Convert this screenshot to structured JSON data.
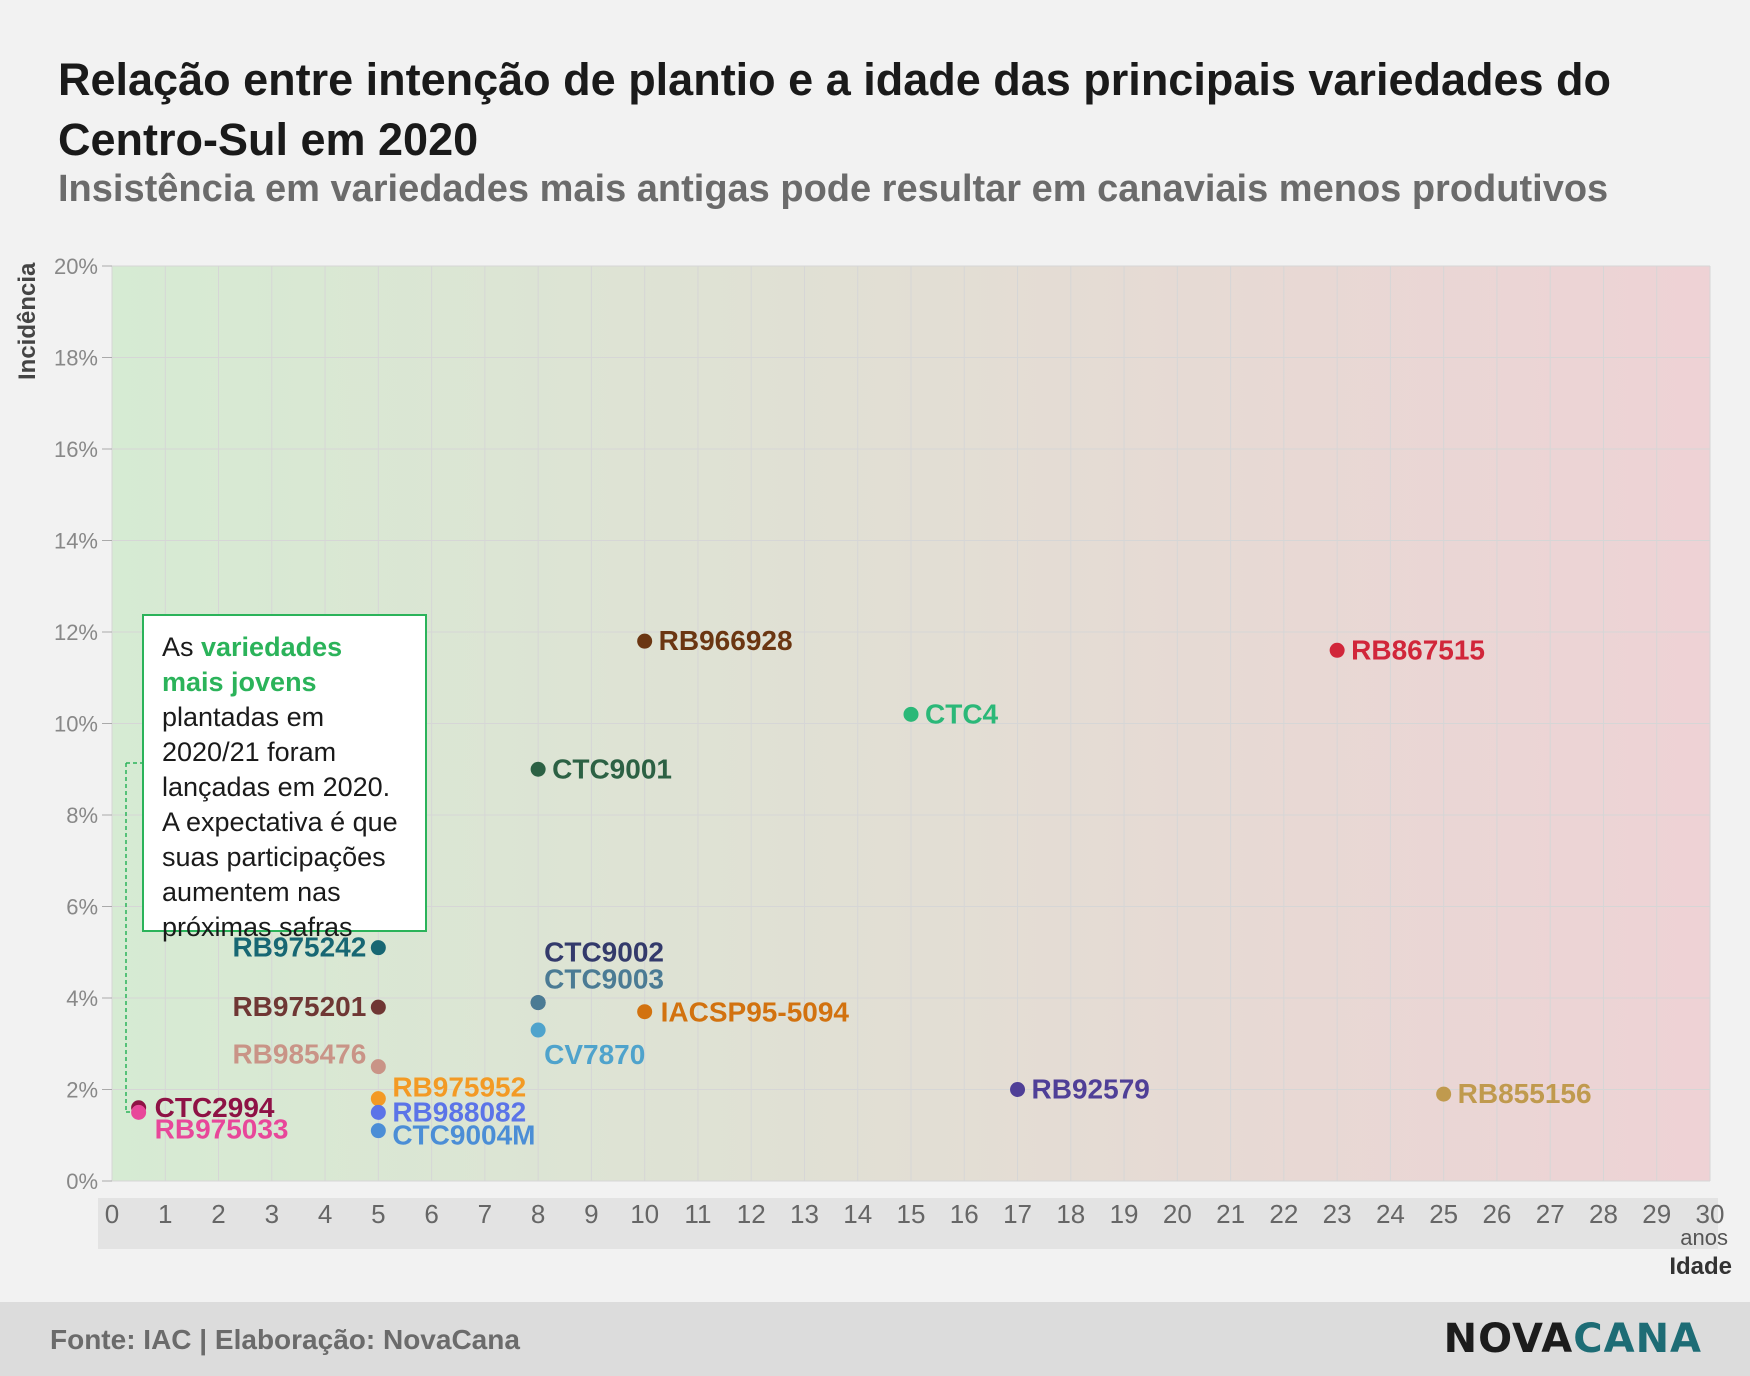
{
  "title": "Relação entre intenção de plantio e a idade das principais variedades do Centro-Sul em 2020",
  "subtitle": "Insistência em variedades mais antigas pode resultar em canaviais menos produtivos",
  "annotation": {
    "pre": "As ",
    "highlight": "variedades mais jovens",
    "post": " plantadas em 2020/21 foram lançadas em 2020. A expectativa é que suas participações aumentem nas próximas safras"
  },
  "source": "Fonte: IAC | Elaboração: NovaCana",
  "logo": {
    "part1": "NOVA",
    "part2": "CANA"
  },
  "chart_data": {
    "type": "scatter",
    "ylabel": "Incidência",
    "xlabel": "Idade",
    "xunit": "anos",
    "xlim": [
      0,
      30
    ],
    "ylim": [
      0,
      20
    ],
    "xticks": [
      "0",
      "1",
      "2",
      "3",
      "4",
      "5",
      "6",
      "7",
      "8",
      "9",
      "10",
      "11",
      "12",
      "13",
      "14",
      "15",
      "16",
      "17",
      "18",
      "19",
      "20",
      "21",
      "22",
      "23",
      "24",
      "25",
      "26",
      "27",
      "28",
      "29",
      "30"
    ],
    "yticks": [
      "0%",
      "2%",
      "4%",
      "6%",
      "8%",
      "10%",
      "12%",
      "14%",
      "16%",
      "18%",
      "20%"
    ],
    "grid": true,
    "background_gradient": [
      "#d6ebd3",
      "#eed2d5"
    ],
    "points": [
      {
        "name": "RB966928",
        "x": 10,
        "y": 11.8,
        "color": "#6b3612",
        "label_side": "right"
      },
      {
        "name": "RB867515",
        "x": 23,
        "y": 11.6,
        "color": "#d1263a",
        "label_side": "right"
      },
      {
        "name": "CTC4",
        "x": 15,
        "y": 10.2,
        "color": "#2bb878",
        "label_side": "right"
      },
      {
        "name": "CTC9001",
        "x": 8,
        "y": 9.0,
        "color": "#2c6144",
        "label_side": "right"
      },
      {
        "name": "RB975242",
        "x": 5,
        "y": 5.1,
        "color": "#176773",
        "label_side": "left"
      },
      {
        "name": "CTC9002",
        "x": 8,
        "y": 3.9,
        "color": "#333a6b",
        "label_side": "right"
      },
      {
        "name": "CTC9003",
        "x": 8,
        "y": 3.9,
        "color": "#4b7b94",
        "label_side": "right"
      },
      {
        "name": "RB975201",
        "x": 5,
        "y": 3.8,
        "color": "#6f3734",
        "label_side": "left"
      },
      {
        "name": "IACSP95-5094",
        "x": 10,
        "y": 3.7,
        "color": "#d2720f",
        "label_side": "right"
      },
      {
        "name": "CV7870",
        "x": 8,
        "y": 3.3,
        "color": "#4fa3cc",
        "label_side": "right"
      },
      {
        "name": "RB985476",
        "x": 5,
        "y": 2.5,
        "color": "#c99487",
        "label_side": "left"
      },
      {
        "name": "RB92579",
        "x": 17,
        "y": 2.0,
        "color": "#4f3f97",
        "label_side": "right"
      },
      {
        "name": "RB855156",
        "x": 25,
        "y": 1.9,
        "color": "#c09a4e",
        "label_side": "right"
      },
      {
        "name": "RB975952",
        "x": 5,
        "y": 1.8,
        "color": "#f39a24",
        "label_side": "right"
      },
      {
        "name": "CTC2994",
        "x": 0.5,
        "y": 1.6,
        "color": "#8e1245",
        "label_side": "right"
      },
      {
        "name": "RB988082",
        "x": 5,
        "y": 1.5,
        "color": "#5b74e8",
        "label_side": "right"
      },
      {
        "name": "RB975033",
        "x": 0.5,
        "y": 1.5,
        "color": "#e8479a",
        "label_side": "right"
      },
      {
        "name": "CTC9004M",
        "x": 5,
        "y": 1.1,
        "color": "#4b8ed6",
        "label_side": "right"
      }
    ]
  }
}
